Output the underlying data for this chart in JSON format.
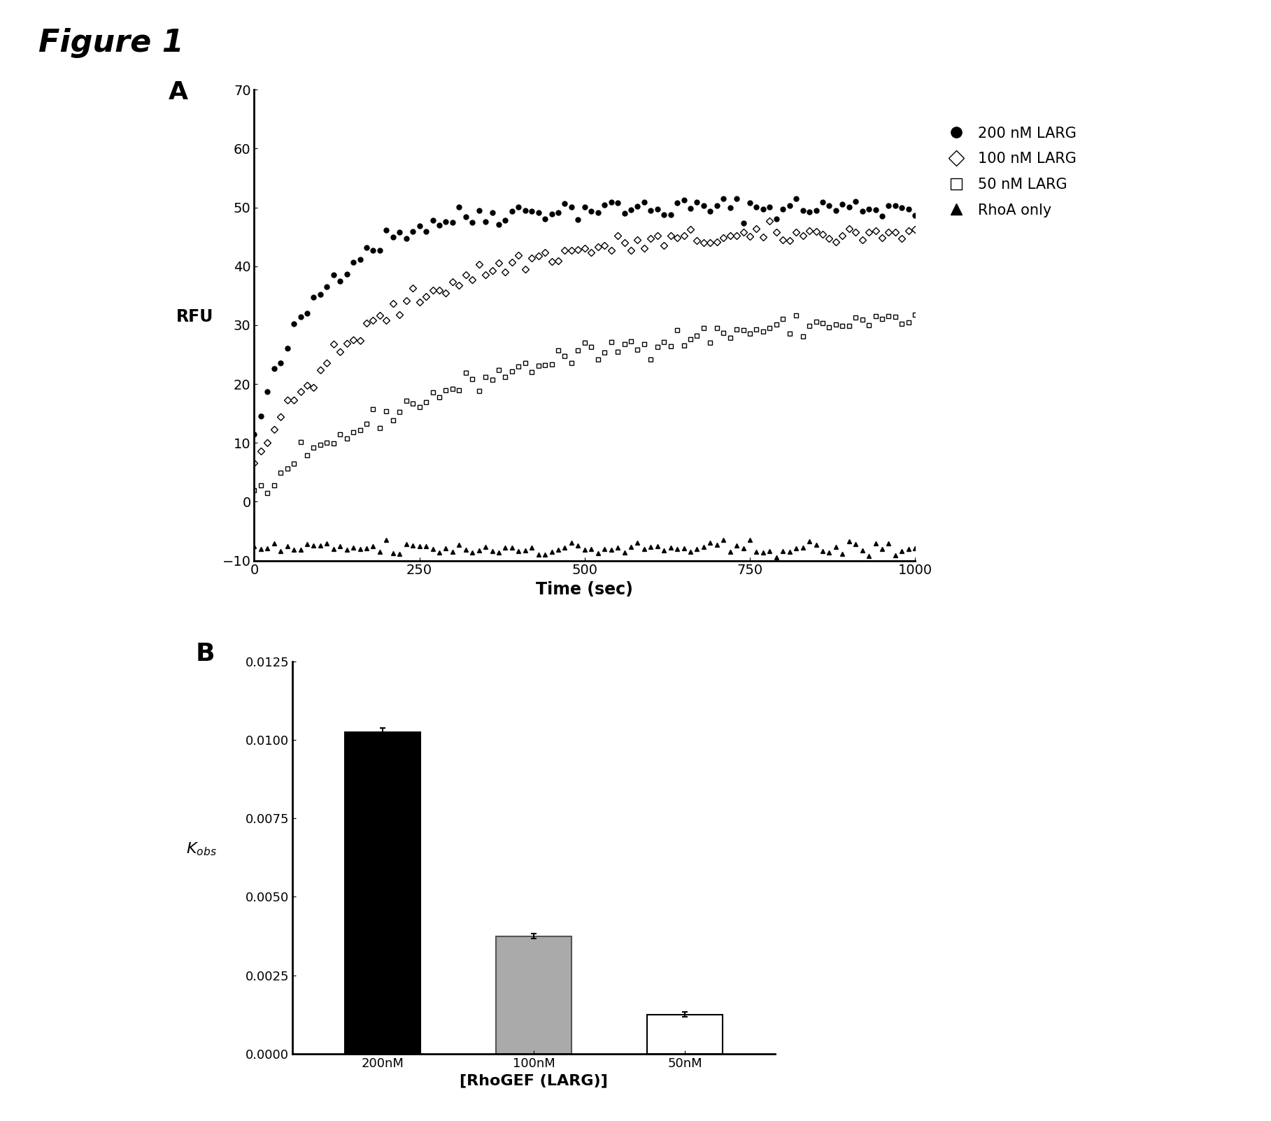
{
  "figure_title": "Figure 1",
  "panel_A": {
    "xlabel": "Time (sec)",
    "ylabel": "RFU",
    "xlim": [
      0,
      1000
    ],
    "ylim": [
      -10,
      70
    ],
    "yticks": [
      -10,
      0,
      10,
      20,
      30,
      40,
      50,
      60,
      70
    ],
    "xticks": [
      0,
      250,
      500,
      750,
      1000
    ],
    "series": [
      {
        "label": "200 nM LARG",
        "color": "#000000",
        "marker": "o",
        "marker_filled": true,
        "plateau": 50,
        "k": 0.01,
        "y0": 11,
        "noise": 1.0
      },
      {
        "label": "100 nM LARG",
        "color": "#000000",
        "marker": "D",
        "marker_filled": false,
        "plateau": 46,
        "k": 0.005,
        "y0": 7,
        "noise": 0.9
      },
      {
        "label": "50 nM LARG",
        "color": "#000000",
        "marker": "s",
        "marker_filled": false,
        "plateau": 33,
        "k": 0.0028,
        "y0": 1,
        "noise": 0.9
      },
      {
        "label": "RhoA only",
        "color": "#000000",
        "marker": "^",
        "marker_filled": true,
        "plateau": -8,
        "k": 0.0,
        "y0": -8,
        "noise": 0.7
      }
    ],
    "legend_entries": [
      {
        "label": "200 nM LARG",
        "marker": "o",
        "filled": true
      },
      {
        "label": "100 nM LARG",
        "marker": "D",
        "filled": false
      },
      {
        "label": "50 nM LARG",
        "marker": "s",
        "filled": false
      },
      {
        "label": "RhoA only",
        "marker": "^",
        "filled": true
      }
    ]
  },
  "panel_B": {
    "xlabel": "[RhoGEF (LARG)]",
    "ylabel": "K_obs",
    "xlim": [
      -0.6,
      2.6
    ],
    "ylim": [
      0,
      0.0125
    ],
    "yticks": [
      0.0,
      0.0025,
      0.005,
      0.0075,
      0.01,
      0.0125
    ],
    "categories": [
      "200nM",
      "100nM",
      "50nM"
    ],
    "values": [
      0.01025,
      0.00375,
      0.00125
    ],
    "errors": [
      0.00012,
      8e-05,
      8e-05
    ],
    "bar_colors": [
      "#000000",
      "#aaaaaa",
      "#ffffff"
    ],
    "bar_edgecolors": [
      "#000000",
      "#555555",
      "#000000"
    ],
    "bar_hatch": [
      null,
      null,
      null
    ]
  }
}
